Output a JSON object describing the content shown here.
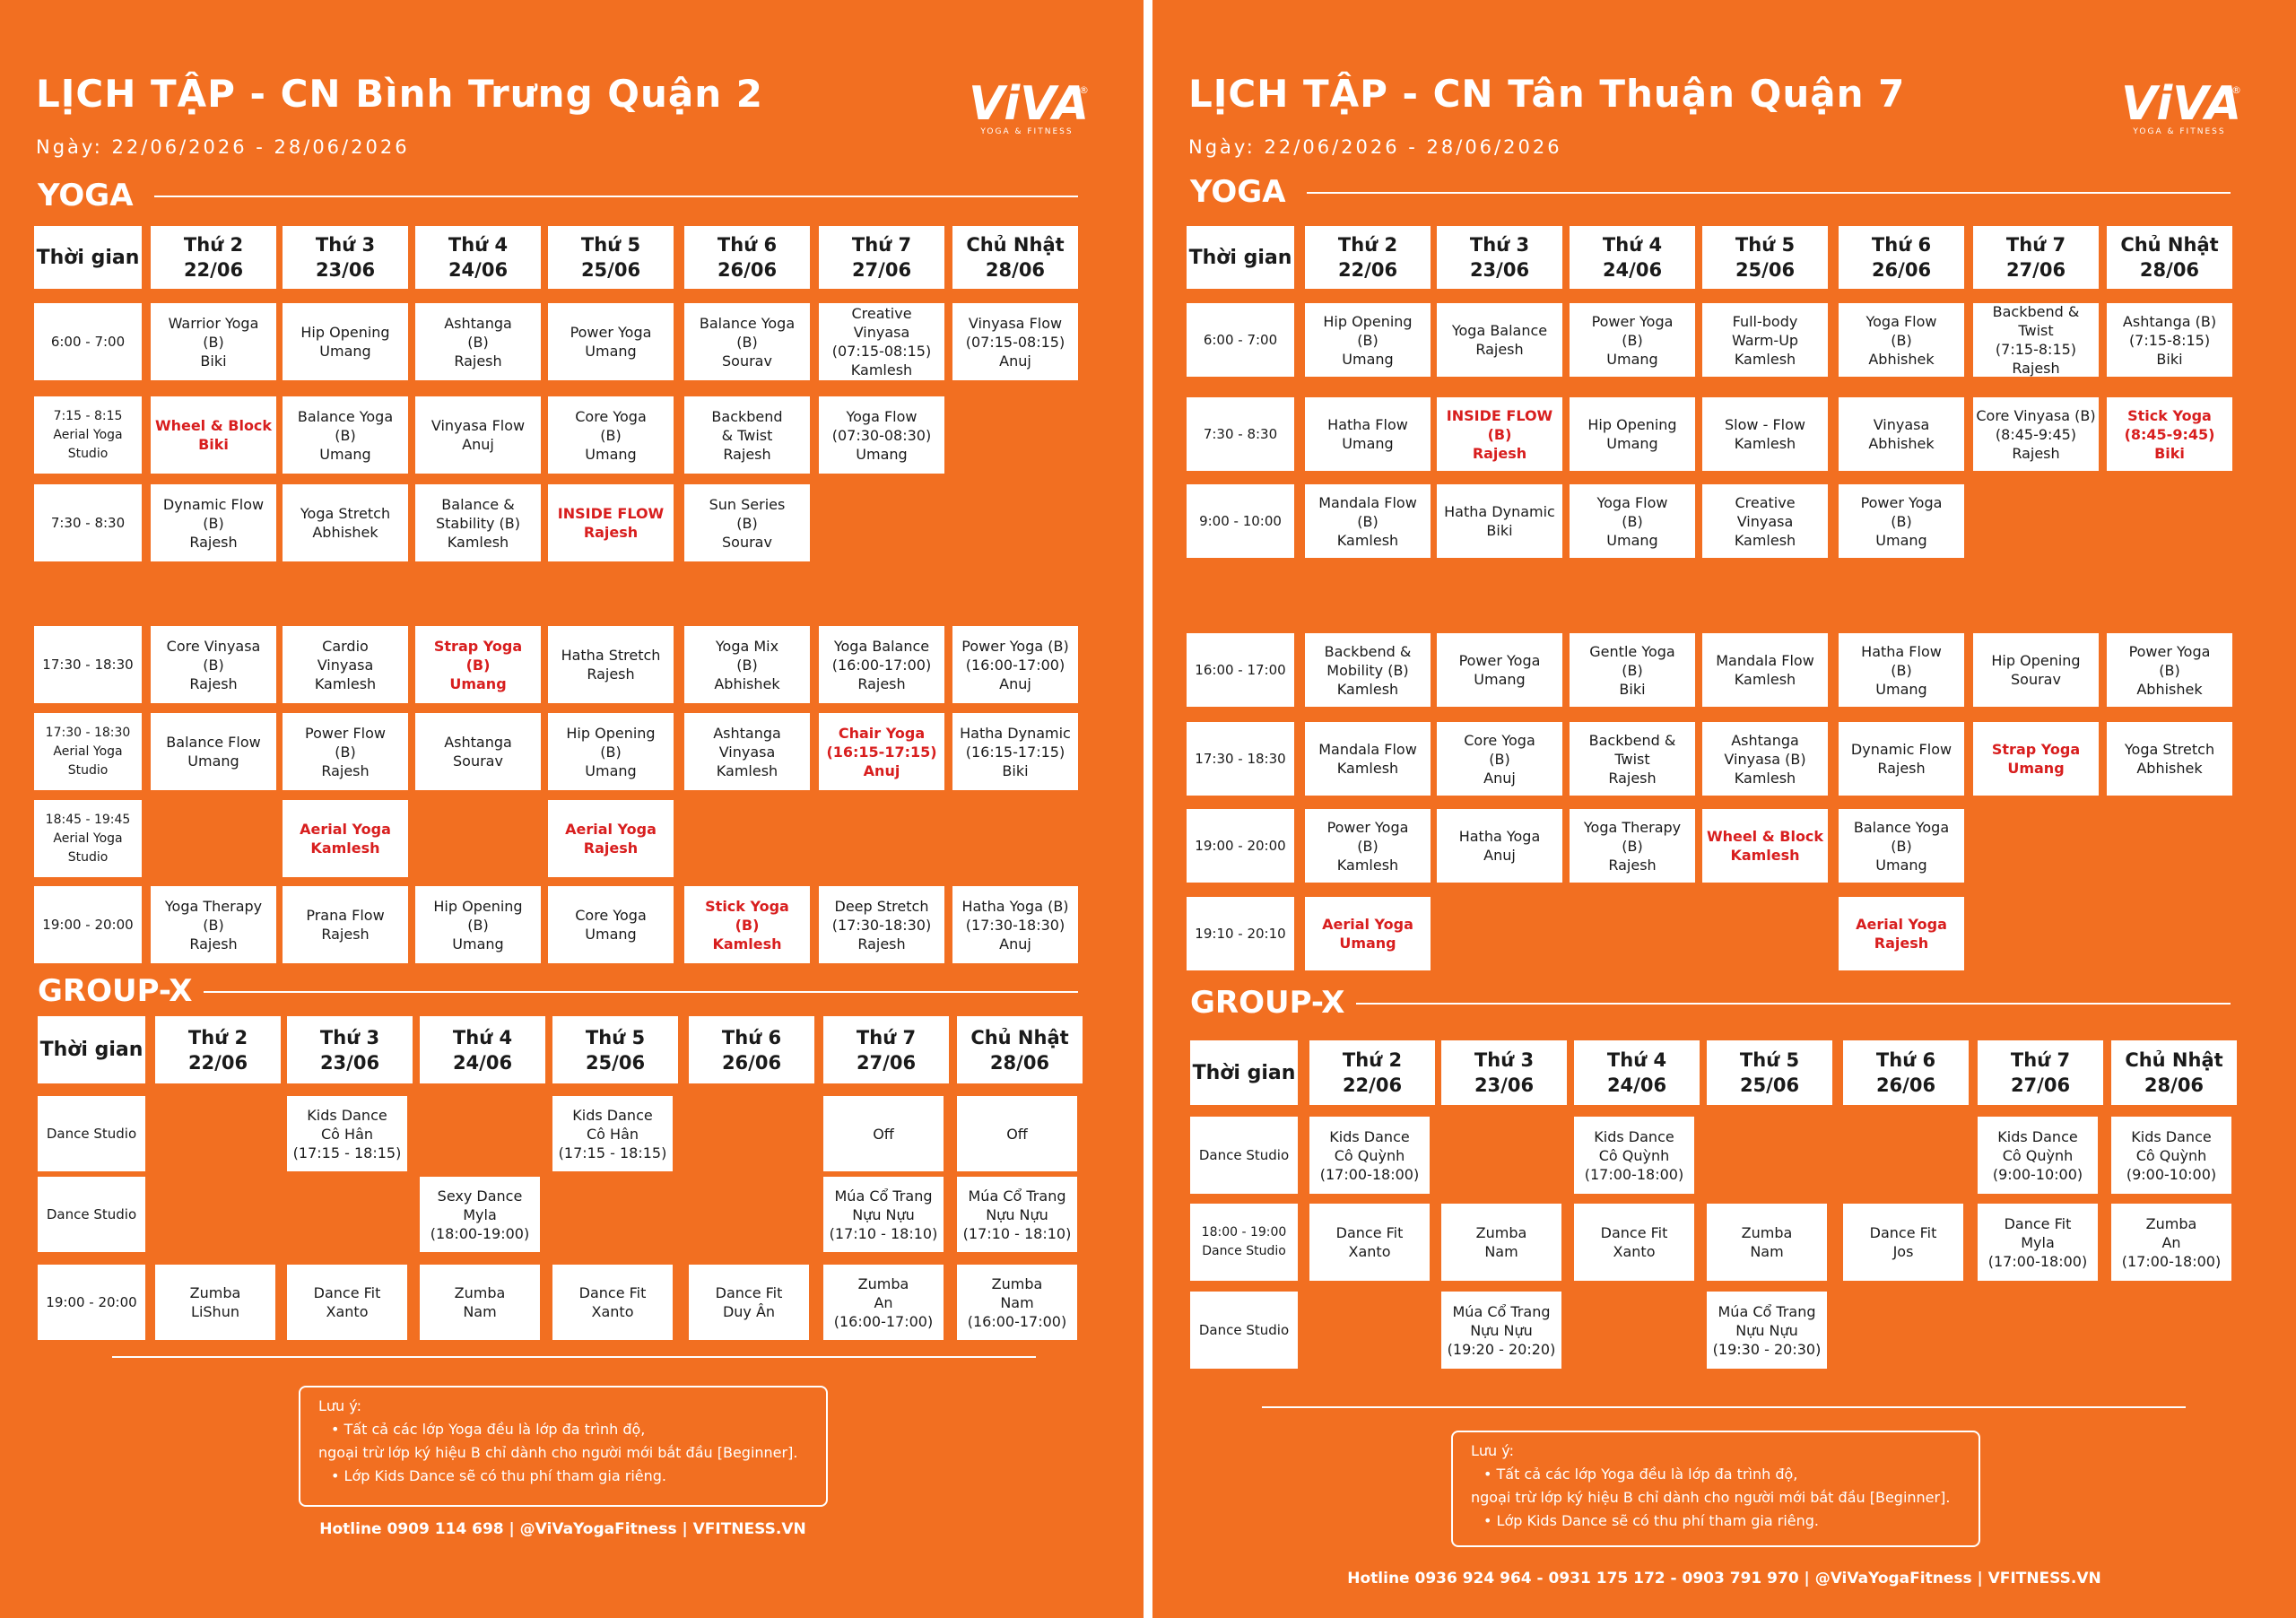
{
  "brand": {
    "logo": "ViVA",
    "logo_sub": "YOGA & FITNESS",
    "reg": "®"
  },
  "left": {
    "title": "LỊCH TẬP - CN Bình Trưng Quận 2",
    "date": "Ngày: 22/06/2026 - 28/06/2026",
    "yoga_label": "YOGA",
    "groupx_label": "GROUP-X",
    "time_header": "Thời gian",
    "days": [
      "Thứ 2\n22/06",
      "Thứ 3\n23/06",
      "Thứ 4\n24/06",
      "Thứ 5\n25/06",
      "Thứ 6\n26/06",
      "Thứ 7\n27/06",
      "Chủ Nhật\n28/06"
    ],
    "yoga_rows": [
      {
        "time": "6:00 - 7:00",
        "cells": [
          {
            "t": "Warrior Yoga\n(B)\nBiki"
          },
          {
            "t": "Hip Opening\nUmang"
          },
          {
            "t": "Ashtanga\n(B)\nRajesh"
          },
          {
            "t": "Power Yoga\nUmang"
          },
          {
            "t": "Balance Yoga\n(B)\nSourav"
          },
          {
            "t": "Creative\nVinyasa\n(07:15-08:15)\nKamlesh"
          },
          {
            "t": "Vinyasa Flow\n(07:15-08:15)\nAnuj"
          }
        ]
      },
      {
        "time": "7:15 - 8:15\nAerial Yoga\nStudio",
        "cells": [
          {
            "t": "Wheel & Block\nBiki",
            "r": 1
          },
          {
            "t": "Balance Yoga\n(B)\nUmang"
          },
          {
            "t": "Vinyasa Flow\nAnuj"
          },
          {
            "t": "Core Yoga\n(B)\nUmang"
          },
          {
            "t": "Backbend\n& Twist\nRajesh"
          },
          {
            "t": "Yoga Flow\n(07:30-08:30)\nUmang"
          },
          null
        ]
      },
      {
        "time": "7:30 - 8:30",
        "cells": [
          {
            "t": "Dynamic Flow\n(B)\nRajesh"
          },
          {
            "t": "Yoga Stretch\nAbhishek"
          },
          {
            "t": "Balance &\nStability (B)\nKamlesh"
          },
          {
            "t": "INSIDE FLOW\nRajesh",
            "r": 1
          },
          {
            "t": "Sun Series\n(B)\nSourav"
          },
          null,
          null
        ]
      },
      {
        "time": "17:30 - 18:30",
        "cells": [
          {
            "t": "Core Vinyasa\n(B)\nRajesh"
          },
          {
            "t": "Cardio\nVinyasa\nKamlesh"
          },
          {
            "t": "Strap Yoga\n(B)\nUmang",
            "r": 1
          },
          {
            "t": "Hatha Stretch\nRajesh"
          },
          {
            "t": "Yoga Mix\n(B)\nAbhishek"
          },
          {
            "t": "Yoga Balance\n(16:00-17:00)\nRajesh"
          },
          {
            "t": "Power Yoga (B)\n(16:00-17:00)\nAnuj"
          }
        ]
      },
      {
        "time": "17:30 - 18:30\nAerial Yoga\nStudio",
        "cells": [
          {
            "t": "Balance Flow\nUmang"
          },
          {
            "t": "Power Flow\n(B)\nRajesh"
          },
          {
            "t": "Ashtanga\nSourav"
          },
          {
            "t": "Hip Opening\n(B)\nUmang"
          },
          {
            "t": "Ashtanga\nVinyasa\nKamlesh"
          },
          {
            "t": "Chair Yoga\n(16:15-17:15)\nAnuj",
            "r": 1
          },
          {
            "t": "Hatha Dynamic\n(16:15-17:15)\nBiki"
          }
        ]
      },
      {
        "time": "18:45 - 19:45\nAerial Yoga\nStudio",
        "cells": [
          null,
          {
            "t": "Aerial Yoga\nKamlesh",
            "r": 1
          },
          null,
          {
            "t": "Aerial Yoga\nRajesh",
            "r": 1
          },
          null,
          null,
          null
        ]
      },
      {
        "time": "19:00 - 20:00",
        "cells": [
          {
            "t": "Yoga Therapy\n(B)\nRajesh"
          },
          {
            "t": "Prana Flow\nRajesh"
          },
          {
            "t": "Hip Opening\n(B)\nUmang"
          },
          {
            "t": "Core Yoga\nUmang"
          },
          {
            "t": "Stick Yoga\n(B)\nKamlesh",
            "r": 1
          },
          {
            "t": "Deep Stretch\n(17:30-18:30)\nRajesh"
          },
          {
            "t": "Hatha Yoga (B)\n(17:30-18:30)\nAnuj"
          }
        ]
      }
    ],
    "gx_rows": [
      {
        "time": "Dance Studio",
        "cells": [
          null,
          {
            "t": "Kids Dance\nCô Hân\n(17:15 - 18:15)"
          },
          null,
          {
            "t": "Kids Dance\nCô Hân\n(17:15 - 18:15)"
          },
          null,
          {
            "t": "Off"
          },
          {
            "t": "Off"
          }
        ]
      },
      {
        "time": "Dance Studio",
        "cells": [
          null,
          null,
          {
            "t": "Sexy Dance\nMyla\n(18:00-19:00)"
          },
          null,
          null,
          {
            "t": "Múa Cổ Trang\nNựu Nựu\n(17:10 - 18:10)"
          },
          {
            "t": "Múa Cổ Trang\nNựu Nựu\n(17:10 - 18:10)"
          }
        ]
      },
      {
        "time": "19:00 - 20:00",
        "cells": [
          {
            "t": "Zumba\nLiShun"
          },
          {
            "t": "Dance Fit\nXanto"
          },
          {
            "t": "Zumba\nNam"
          },
          {
            "t": "Dance Fit\nXanto"
          },
          {
            "t": "Dance Fit\nDuy Ân"
          },
          {
            "t": "Zumba\nAn\n(16:00-17:00)"
          },
          {
            "t": "Zumba\nNam\n(16:00-17:00)"
          }
        ]
      }
    ],
    "note": {
      "title": "Lưu ý:",
      "line1": "• Tất cả các lớp Yoga đều là lớp đa trình độ,",
      "line2": "ngoại trừ lớp ký hiệu B chỉ dành cho người mới bắt đầu [Beginner].",
      "line3": "• Lớp Kids Dance sẽ có thu phí tham gia riêng."
    },
    "hotline": "Hotline 0909 114 698 | @ViVaYogaFitness | VFITNESS.VN"
  },
  "right": {
    "title": "LỊCH TẬP - CN Tân Thuận Quận 7",
    "date": "Ngày: 22/06/2026 - 28/06/2026",
    "yoga_label": "YOGA",
    "groupx_label": "GROUP-X",
    "time_header": "Thời gian",
    "days": [
      "Thứ 2\n22/06",
      "Thứ 3\n23/06",
      "Thứ 4\n24/06",
      "Thứ 5\n25/06",
      "Thứ 6\n26/06",
      "Thứ 7\n27/06",
      "Chủ Nhật\n28/06"
    ],
    "yoga_rows": [
      {
        "time": "6:00 - 7:00",
        "cells": [
          {
            "t": "Hip Opening\n(B)\nUmang"
          },
          {
            "t": "Yoga Balance\nRajesh"
          },
          {
            "t": "Power Yoga\n(B)\nUmang"
          },
          {
            "t": "Full-body\nWarm-Up\nKamlesh"
          },
          {
            "t": "Yoga Flow\n(B)\nAbhishek"
          },
          {
            "t": "Backbend &\nTwist\n(7:15-8:15)\nRajesh"
          },
          {
            "t": "Ashtanga (B)\n(7:15-8:15)\nBiki"
          }
        ]
      },
      {
        "time": "7:30 - 8:30",
        "cells": [
          {
            "t": "Hatha Flow\nUmang"
          },
          {
            "t": "INSIDE FLOW\n(B)\nRajesh",
            "r": 1
          },
          {
            "t": "Hip Opening\nUmang"
          },
          {
            "t": "Slow - Flow\nKamlesh"
          },
          {
            "t": "Vinyasa\nAbhishek"
          },
          {
            "t": "Core Vinyasa (B)\n(8:45-9:45)\nRajesh"
          },
          {
            "t": "Stick Yoga\n(8:45-9:45)\nBiki",
            "r": 1
          }
        ]
      },
      {
        "time": "9:00 - 10:00",
        "cells": [
          {
            "t": "Mandala Flow\n(B)\nKamlesh"
          },
          {
            "t": "Hatha Dynamic\nBiki"
          },
          {
            "t": "Yoga Flow\n(B)\nUmang"
          },
          {
            "t": "Creative\nVinyasa\nKamlesh"
          },
          {
            "t": "Power Yoga\n(B)\nUmang"
          },
          null,
          null
        ]
      },
      {
        "time": "16:00 - 17:00",
        "cells": [
          {
            "t": "Backbend &\nMobility (B)\nKamlesh"
          },
          {
            "t": "Power Yoga\nUmang"
          },
          {
            "t": "Gentle Yoga\n(B)\nBiki"
          },
          {
            "t": "Mandala Flow\nKamlesh"
          },
          {
            "t": "Hatha Flow\n(B)\nUmang"
          },
          {
            "t": "Hip Opening\nSourav"
          },
          {
            "t": "Power Yoga\n(B)\nAbhishek"
          }
        ]
      },
      {
        "time": "17:30 - 18:30",
        "cells": [
          {
            "t": "Mandala Flow\nKamlesh"
          },
          {
            "t": "Core Yoga\n(B)\nAnuj"
          },
          {
            "t": "Backbend &\nTwist\nRajesh"
          },
          {
            "t": "Ashtanga\nVinyasa (B)\nKamlesh"
          },
          {
            "t": "Dynamic Flow\nRajesh"
          },
          {
            "t": "Strap Yoga\nUmang",
            "r": 1
          },
          {
            "t": "Yoga Stretch\nAbhishek"
          }
        ]
      },
      {
        "time": "19:00 - 20:00",
        "cells": [
          {
            "t": "Power Yoga\n(B)\nKamlesh"
          },
          {
            "t": "Hatha Yoga\nAnuj"
          },
          {
            "t": "Yoga Therapy\n(B)\nRajesh"
          },
          {
            "t": "Wheel & Block\nKamlesh",
            "r": 1
          },
          {
            "t": "Balance Yoga\n(B)\nUmang"
          },
          null,
          null
        ]
      },
      {
        "time": "19:10 - 20:10",
        "cells": [
          {
            "t": "Aerial Yoga\nUmang",
            "r": 1
          },
          null,
          null,
          null,
          {
            "t": "Aerial Yoga\nRajesh",
            "r": 1
          },
          null,
          null
        ]
      }
    ],
    "gx_rows": [
      {
        "time": "Dance Studio",
        "cells": [
          {
            "t": "Kids Dance\nCô Quỳnh\n(17:00-18:00)"
          },
          null,
          {
            "t": "Kids Dance\nCô Quỳnh\n(17:00-18:00)"
          },
          null,
          null,
          {
            "t": "Kids Dance\nCô Quỳnh\n(9:00-10:00)"
          },
          {
            "t": "Kids Dance\nCô Quỳnh\n(9:00-10:00)"
          }
        ]
      },
      {
        "time": "18:00 - 19:00\nDance Studio",
        "cells": [
          {
            "t": "Dance Fit\nXanto"
          },
          {
            "t": "Zumba\nNam"
          },
          {
            "t": "Dance Fit\nXanto"
          },
          {
            "t": "Zumba\nNam"
          },
          {
            "t": "Dance Fit\nJos"
          },
          {
            "t": "Dance Fit\nMyla\n(17:00-18:00)"
          },
          {
            "t": "Zumba\nAn\n(17:00-18:00)"
          }
        ]
      },
      {
        "time": "Dance Studio",
        "cells": [
          null,
          {
            "t": "Múa Cổ Trang\nNựu Nựu\n(19:20 - 20:20)"
          },
          null,
          {
            "t": "Múa Cổ Trang\nNựu Nựu\n(19:30 - 20:30)"
          },
          null,
          null,
          null
        ]
      }
    ],
    "note": {
      "title": "Lưu ý:",
      "line1": "• Tất cả các lớp Yoga đều là lớp đa trình độ,",
      "line2": "ngoại trừ lớp ký hiệu B chỉ dành cho người mới bắt đầu [Beginner].",
      "line3": "• Lớp Kids Dance sẽ có thu phí tham gia riêng."
    },
    "hotline": "Hotline 0936 924 964 - 0931 175 172 - 0903 791 970 | @ViVaYogaFitness | VFITNESS.VN"
  }
}
